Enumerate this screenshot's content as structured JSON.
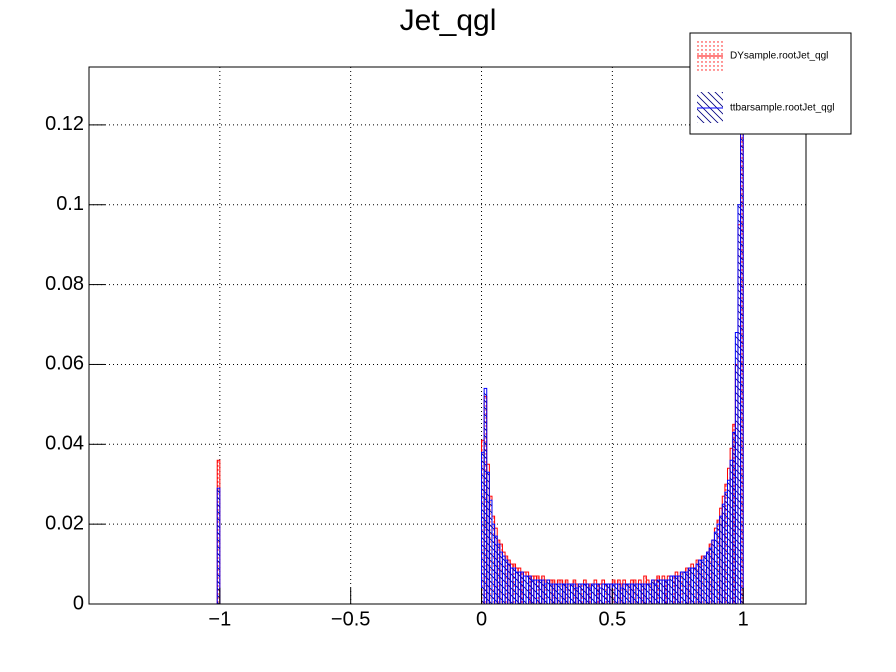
{
  "chart_data": {
    "type": "histogram",
    "title": "Jet_qgl",
    "bins": [
      -1.01,
      -1.0,
      0,
      0.01,
      0.02,
      0.03,
      0.04,
      0.05,
      0.06,
      0.07,
      0.08,
      0.09,
      0.1,
      0.11,
      0.12,
      0.13,
      0.14,
      0.15,
      0.16,
      0.17,
      0.18,
      0.19,
      0.2,
      0.21,
      0.22,
      0.23,
      0.24,
      0.25,
      0.26,
      0.27,
      0.28,
      0.29,
      0.3,
      0.31,
      0.32,
      0.33,
      0.34,
      0.35,
      0.36,
      0.37,
      0.38,
      0.39,
      0.4,
      0.41,
      0.42,
      0.43,
      0.44,
      0.45,
      0.46,
      0.47,
      0.48,
      0.49,
      0.5,
      0.51,
      0.52,
      0.53,
      0.54,
      0.55,
      0.56,
      0.57,
      0.58,
      0.59,
      0.6,
      0.61,
      0.62,
      0.63,
      0.64,
      0.65,
      0.66,
      0.67,
      0.68,
      0.69,
      0.7,
      0.71,
      0.72,
      0.73,
      0.74,
      0.75,
      0.76,
      0.77,
      0.78,
      0.79,
      0.8,
      0.81,
      0.82,
      0.83,
      0.84,
      0.85,
      0.86,
      0.87,
      0.88,
      0.89,
      0.9,
      0.91,
      0.92,
      0.93,
      0.94,
      0.95,
      0.96,
      0.97,
      0.98,
      0.99,
      1.0
    ],
    "series": [
      {
        "name": "DYsample.rootJet_qgl",
        "color": "#ff0000",
        "fill_style": "dots",
        "values": [
          0.036,
          0,
          0.041,
          0.052,
          0.035,
          0.027,
          0.022,
          0.019,
          0.016,
          0.015,
          0.013,
          0.012,
          0.011,
          0.01,
          0.01,
          0.009,
          0.009,
          0.008,
          0.008,
          0.008,
          0.007,
          0.007,
          0.007,
          0.007,
          0.006,
          0.007,
          0.006,
          0.006,
          0.006,
          0.006,
          0.005,
          0.006,
          0.006,
          0.005,
          0.006,
          0.005,
          0.005,
          0.006,
          0.005,
          0.005,
          0.005,
          0.006,
          0.005,
          0.005,
          0.005,
          0.006,
          0.005,
          0.005,
          0.006,
          0.005,
          0.005,
          0.005,
          0.006,
          0.005,
          0.006,
          0.005,
          0.006,
          0.005,
          0.005,
          0.006,
          0.006,
          0.005,
          0.006,
          0.005,
          0.007,
          0.006,
          0.005,
          0.006,
          0.006,
          0.007,
          0.006,
          0.007,
          0.006,
          0.007,
          0.007,
          0.007,
          0.008,
          0.007,
          0.008,
          0.008,
          0.009,
          0.009,
          0.01,
          0.009,
          0.011,
          0.01,
          0.012,
          0.012,
          0.013,
          0.015,
          0.016,
          0.019,
          0.021,
          0.024,
          0.027,
          0.03,
          0.034,
          0.039,
          0.045,
          0.06,
          0.095,
          0.122
        ]
      },
      {
        "name": "ttbarsample.rootJet_qgl",
        "color": "#0000ff",
        "fill_style": "diagonal",
        "values": [
          0.029,
          0,
          0.038,
          0.054,
          0.033,
          0.026,
          0.02,
          0.017,
          0.015,
          0.013,
          0.012,
          0.011,
          0.01,
          0.009,
          0.009,
          0.008,
          0.008,
          0.008,
          0.007,
          0.007,
          0.007,
          0.006,
          0.006,
          0.006,
          0.006,
          0.006,
          0.005,
          0.006,
          0.005,
          0.005,
          0.005,
          0.005,
          0.005,
          0.005,
          0.005,
          0.005,
          0.005,
          0.005,
          0.004,
          0.005,
          0.005,
          0.005,
          0.005,
          0.004,
          0.005,
          0.005,
          0.005,
          0.004,
          0.005,
          0.005,
          0.005,
          0.005,
          0.005,
          0.005,
          0.005,
          0.004,
          0.005,
          0.005,
          0.005,
          0.005,
          0.005,
          0.005,
          0.005,
          0.005,
          0.005,
          0.005,
          0.005,
          0.006,
          0.005,
          0.006,
          0.006,
          0.006,
          0.006,
          0.006,
          0.007,
          0.007,
          0.007,
          0.007,
          0.008,
          0.008,
          0.008,
          0.009,
          0.009,
          0.009,
          0.01,
          0.011,
          0.011,
          0.012,
          0.013,
          0.014,
          0.016,
          0.018,
          0.02,
          0.022,
          0.025,
          0.028,
          0.031,
          0.036,
          0.043,
          0.068,
          0.1,
          0.133
        ]
      }
    ],
    "xlim": [
      -1.5,
      1.24
    ],
    "xticks": [
      {
        "value": -1,
        "label": "−1"
      },
      {
        "value": -0.5,
        "label": "−0.5"
      },
      0,
      0.5,
      1
    ],
    "ylim": [
      0,
      0.1345
    ],
    "yticks": [
      0,
      0.02,
      0.04,
      0.06,
      0.08,
      0.1,
      0.12
    ],
    "grid": true,
    "legend": "top-right"
  }
}
